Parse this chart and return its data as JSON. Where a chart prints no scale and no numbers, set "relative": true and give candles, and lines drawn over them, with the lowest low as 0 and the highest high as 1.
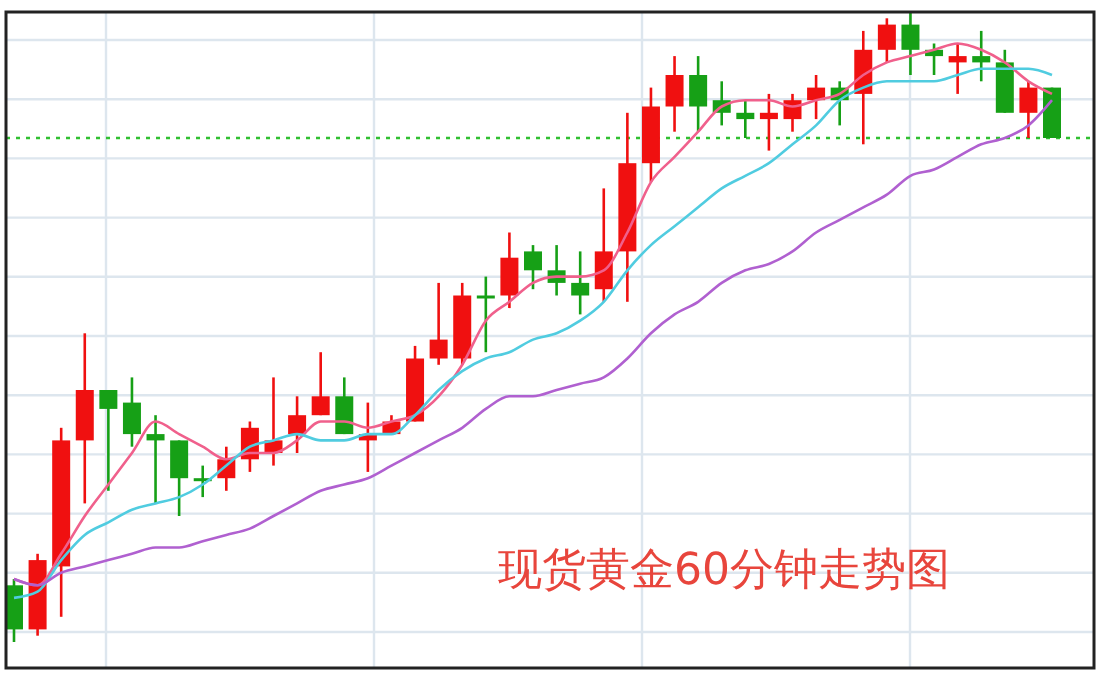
{
  "chart_data": {
    "type": "candlestick",
    "title": "现货黄金60分钟走势图",
    "relative": true,
    "grid": true,
    "categories": [
      null,
      null,
      null,
      null,
      null,
      null,
      null,
      null,
      null,
      null,
      null,
      null,
      null,
      null,
      null,
      null,
      null,
      null,
      null,
      null,
      null,
      null,
      null,
      null,
      null,
      null,
      null,
      null,
      null,
      null,
      null,
      null,
      null,
      null,
      null,
      null,
      null,
      null,
      null,
      null,
      null,
      null,
      null,
      null,
      null
    ],
    "ohlc": [
      [
        0.09,
        0.1,
        0,
        0.02
      ],
      [
        0.02,
        0.14,
        0.01,
        0.13
      ],
      [
        0.12,
        0.34,
        0.04,
        0.32
      ],
      [
        0.32,
        0.49,
        0.22,
        0.4
      ],
      [
        0.4,
        0.4,
        0.24,
        0.37
      ],
      [
        0.38,
        0.42,
        0.31,
        0.33
      ],
      [
        0.33,
        0.36,
        0.22,
        0.32
      ],
      [
        0.32,
        0.32,
        0.2,
        0.26
      ],
      [
        0.26,
        0.28,
        0.23,
        0.26
      ],
      [
        0.26,
        0.31,
        0.24,
        0.29
      ],
      [
        0.29,
        0.35,
        0.27,
        0.34
      ],
      [
        0.3,
        0.42,
        0.28,
        0.32
      ],
      [
        0.33,
        0.39,
        0.3,
        0.36
      ],
      [
        0.36,
        0.46,
        0.36,
        0.39
      ],
      [
        0.39,
        0.42,
        0.33,
        0.33
      ],
      [
        0.32,
        0.38,
        0.27,
        0.33
      ],
      [
        0.33,
        0.36,
        0.33,
        0.35
      ],
      [
        0.35,
        0.47,
        0.35,
        0.45
      ],
      [
        0.45,
        0.57,
        0.44,
        0.48
      ],
      [
        0.45,
        0.57,
        0.44,
        0.55
      ],
      [
        0.55,
        0.58,
        0.46,
        0.55
      ],
      [
        0.55,
        0.65,
        0.53,
        0.61
      ],
      [
        0.62,
        0.63,
        0.56,
        0.59
      ],
      [
        0.59,
        0.63,
        0.55,
        0.57
      ],
      [
        0.57,
        0.62,
        0.52,
        0.55
      ],
      [
        0.56,
        0.72,
        0.54,
        0.62
      ],
      [
        0.62,
        0.84,
        0.54,
        0.76
      ],
      [
        0.76,
        0.88,
        0.73,
        0.85
      ],
      [
        0.85,
        0.93,
        0.81,
        0.9
      ],
      [
        0.9,
        0.93,
        0.81,
        0.85
      ],
      [
        0.86,
        0.89,
        0.82,
        0.84
      ],
      [
        0.84,
        0.86,
        0.8,
        0.83
      ],
      [
        0.83,
        0.87,
        0.78,
        0.84
      ],
      [
        0.83,
        0.87,
        0.81,
        0.86
      ],
      [
        0.86,
        0.9,
        0.83,
        0.88
      ],
      [
        0.88,
        0.89,
        0.82,
        0.86
      ],
      [
        0.87,
        0.97,
        0.79,
        0.94
      ],
      [
        0.94,
        0.99,
        0.92,
        0.98
      ],
      [
        0.98,
        1,
        0.9,
        0.94
      ],
      [
        0.94,
        0.95,
        0.9,
        0.93
      ],
      [
        0.92,
        0.95,
        0.87,
        0.93
      ],
      [
        0.93,
        0.97,
        0.89,
        0.92
      ],
      [
        0.92,
        0.94,
        0.84,
        0.84
      ],
      [
        0.84,
        0.89,
        0.8,
        0.88
      ],
      [
        0.88,
        0.88,
        0.8,
        0.8
      ]
    ],
    "colors": [
      "#16a016",
      "#f01010",
      "#f01010",
      "#f01010",
      "#16a016",
      "#16a016",
      "#16a016",
      "#16a016",
      "#16a016",
      "#f01010",
      "#f01010",
      "#f01010",
      "#f01010",
      "#f01010",
      "#16a016",
      "#f01010",
      "#f01010",
      "#f01010",
      "#f01010",
      "#f01010",
      "#16a016",
      "#f01010",
      "#16a016",
      "#16a016",
      "#16a016",
      "#f01010",
      "#f01010",
      "#f01010",
      "#f01010",
      "#16a016",
      "#16a016",
      "#16a016",
      "#f01010",
      "#f01010",
      "#f01010",
      "#16a016",
      "#f01010",
      "#f01010",
      "#16a016",
      "#16a016",
      "#f01010",
      "#16a016",
      "#16a016",
      "#f01010",
      "#16a016"
    ],
    "series": [
      {
        "type": "line",
        "color": "#f0608c",
        "values": [
          0.1,
          0.09,
          0.14,
          0.2,
          0.25,
          0.3,
          0.35,
          0.33,
          0.31,
          0.29,
          0.3,
          0.3,
          0.32,
          0.35,
          0.35,
          0.34,
          0.35,
          0.36,
          0.39,
          0.44,
          0.51,
          0.54,
          0.57,
          0.58,
          0.58,
          0.59,
          0.65,
          0.73,
          0.77,
          0.81,
          0.85,
          0.86,
          0.86,
          0.85,
          0.86,
          0.87,
          0.9,
          0.92,
          0.93,
          0.94,
          0.95,
          0.94,
          0.92,
          0.89,
          0.87
        ]
      },
      {
        "type": "line",
        "color": "#50cce0",
        "values": [
          0.07,
          0.08,
          0.13,
          0.17,
          0.19,
          0.21,
          0.22,
          0.23,
          0.25,
          0.28,
          0.31,
          0.32,
          0.33,
          0.32,
          0.32,
          0.33,
          0.33,
          0.36,
          0.4,
          0.43,
          0.45,
          0.46,
          0.48,
          0.49,
          0.51,
          0.54,
          0.59,
          0.63,
          0.66,
          0.69,
          0.72,
          0.74,
          0.76,
          0.79,
          0.82,
          0.86,
          0.88,
          0.89,
          0.89,
          0.89,
          0.9,
          0.91,
          0.91,
          0.91,
          0.9
        ]
      },
      {
        "type": "line",
        "color": "#b060d0",
        "values": [
          0.1,
          0.09,
          0.11,
          0.12,
          0.13,
          0.14,
          0.15,
          0.15,
          0.16,
          0.17,
          0.18,
          0.2,
          0.22,
          0.24,
          0.25,
          0.26,
          0.28,
          0.3,
          0.32,
          0.34,
          0.37,
          0.39,
          0.39,
          0.4,
          0.41,
          0.42,
          0.45,
          0.49,
          0.52,
          0.54,
          0.57,
          0.59,
          0.6,
          0.62,
          0.65,
          0.67,
          0.69,
          0.71,
          0.74,
          0.75,
          0.77,
          0.79,
          0.8,
          0.82,
          0.86
        ]
      }
    ],
    "ref_lines": [
      {
        "axis": "y",
        "value": 0.8,
        "color": "#30c030",
        "line_style": "dotted"
      }
    ]
  }
}
